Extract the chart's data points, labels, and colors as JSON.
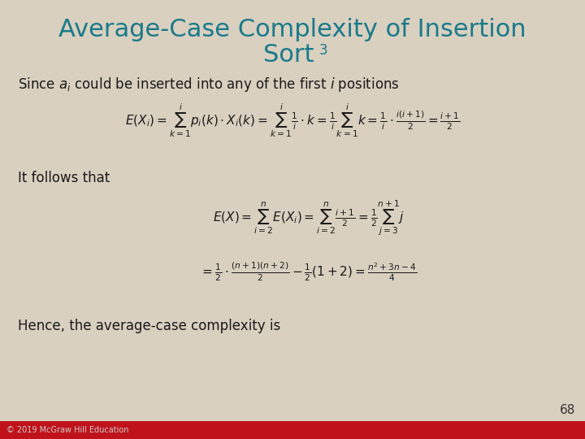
{
  "title_line1": "Average-Case Complexity of Insertion",
  "title_line2": "Sort",
  "title_subscript": "3",
  "title_color": "#1a7a8a",
  "bg_color": "#d9d0c0",
  "footer_bg_color": "#c0121a",
  "body_text_color": "#1a1a1a",
  "footer_text": "© 2019 McGraw Hill Education",
  "footer_text_color": "#cccccc",
  "page_number": "68",
  "page_number_color": "#333333",
  "it_follows": "It follows that",
  "hence": "Hence, the average-case complexity is"
}
